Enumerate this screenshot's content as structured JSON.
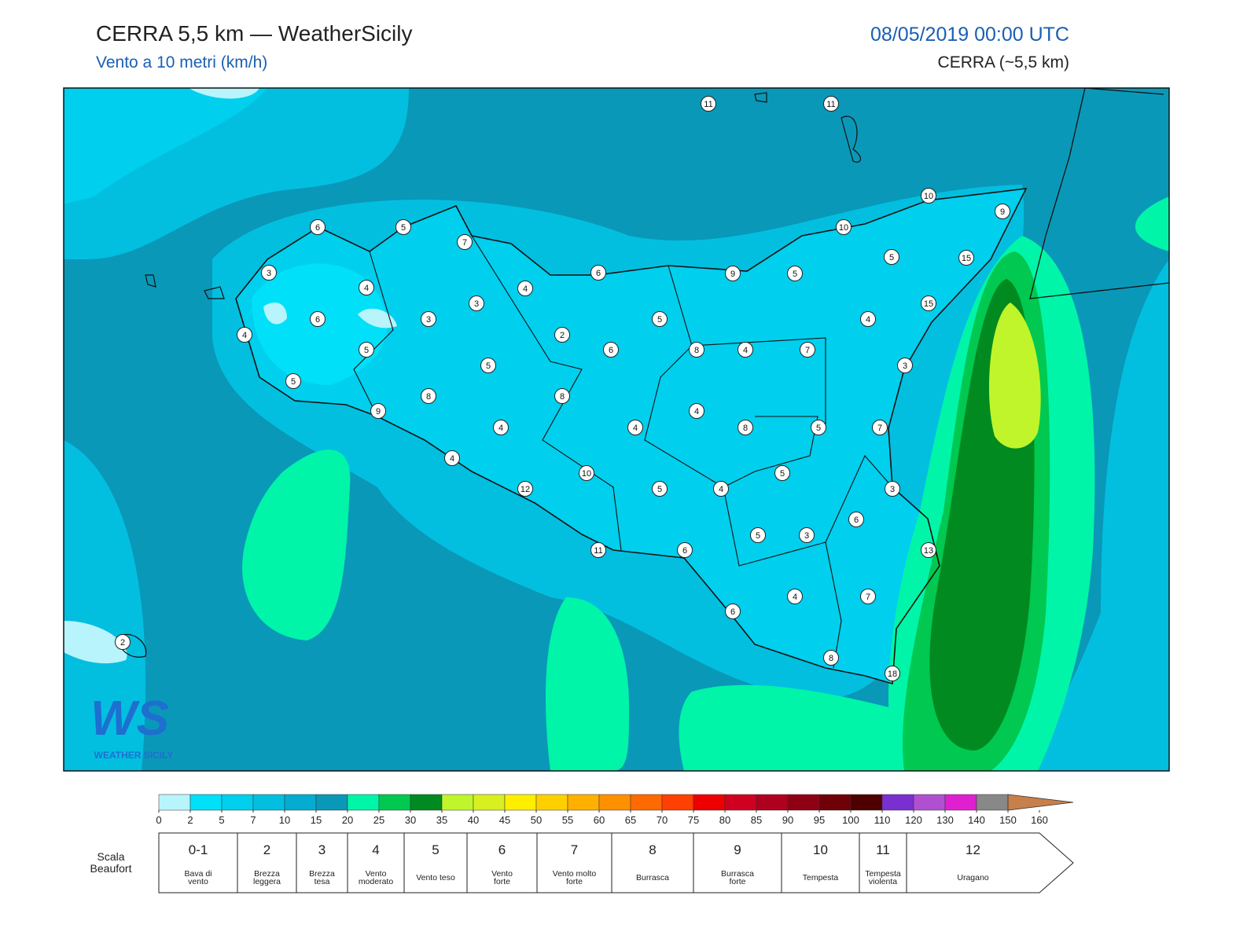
{
  "header": {
    "title": "CERRA 5,5 km — WeatherSicily",
    "subtitle": "Vento a 10 metri (km/h)",
    "datetime": "08/05/2019 00:00 UTC",
    "model": "CERRA (~5,5 km)"
  },
  "map": {
    "stations": [
      11,
      11,
      10,
      9,
      10,
      6,
      5,
      7,
      15,
      5,
      3,
      6,
      9,
      5,
      4,
      4,
      3,
      15,
      6,
      3,
      5,
      4,
      4,
      2,
      5,
      6,
      8,
      4,
      7,
      5,
      3,
      5,
      8,
      8,
      9,
      4,
      4,
      4,
      8,
      5,
      7,
      4,
      10,
      5,
      12,
      5,
      4,
      3,
      6,
      5,
      3,
      11,
      6,
      13,
      4,
      7,
      6,
      2,
      8,
      18
    ]
  },
  "logo": {
    "mark": "WS",
    "name": "WEATHER SICILY"
  },
  "color_scale": {
    "ticks": [
      0,
      2,
      5,
      7,
      10,
      15,
      20,
      25,
      30,
      35,
      40,
      45,
      50,
      55,
      60,
      65,
      70,
      75,
      80,
      85,
      90,
      95,
      100,
      110,
      120,
      130,
      140,
      150,
      160
    ],
    "colors": [
      "#b8f4fc",
      "#00e0f8",
      "#00cfee",
      "#02bfe0",
      "#03acd0",
      "#0a98b8",
      "#00f5a8",
      "#00c850",
      "#008a20",
      "#bff52a",
      "#d8f020",
      "#ffee00",
      "#ffd000",
      "#ffb000",
      "#ff9000",
      "#ff6a00",
      "#ff4000",
      "#ee0000",
      "#d00020",
      "#b00020",
      "#900015",
      "#700008",
      "#4e0000",
      "#7a30d0",
      "#b050d0",
      "#e020d0",
      "#888888",
      "#5a5a5a",
      "#000000",
      "#7a4020",
      "#c8804a"
    ]
  },
  "beaufort": {
    "label": [
      "Scala",
      "Beaufort"
    ],
    "levels": [
      {
        "force": "0-1",
        "name": [
          "Bava di",
          "vento"
        ]
      },
      {
        "force": "2",
        "name": [
          "Brezza",
          "leggera"
        ]
      },
      {
        "force": "3",
        "name": [
          "Brezza",
          "tesa"
        ]
      },
      {
        "force": "4",
        "name": [
          "Vento",
          "moderato"
        ]
      },
      {
        "force": "5",
        "name": [
          "Vento teso"
        ]
      },
      {
        "force": "6",
        "name": [
          "Vento",
          "forte"
        ]
      },
      {
        "force": "7",
        "name": [
          "Vento molto",
          "forte"
        ]
      },
      {
        "force": "8",
        "name": [
          "Burrasca"
        ]
      },
      {
        "force": "9",
        "name": [
          "Burrasca",
          "forte"
        ]
      },
      {
        "force": "10",
        "name": [
          "Tempesta"
        ]
      },
      {
        "force": "11",
        "name": [
          "Tempesta",
          "violenta"
        ]
      },
      {
        "force": "12",
        "name": [
          "Uragano"
        ]
      }
    ]
  }
}
